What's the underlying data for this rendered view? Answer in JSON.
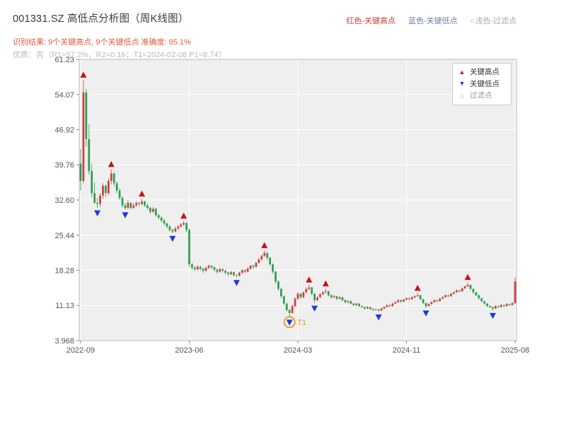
{
  "header": {
    "title": "001331.SZ 高低点分析图（周K线图）",
    "legend_red": "红色-关键高点",
    "legend_blue": "蓝色-关键低点",
    "legend_filtered": "○浅色-过滤点",
    "result_line": "识别结果: 9个关键高点, 9个关键低点  准确度: 95.1%",
    "quality_line": "优质：否（R1=57.2%，R2=0.16；T1=2024-02-08 P1=8.74）",
    "colors": {
      "title": "#3a3a3a",
      "red": "#c2443a",
      "blue": "#6f7fa3",
      "filtered": "#a8a8a8",
      "result": "#e05a3f",
      "quality": "#b9b9b9"
    }
  },
  "plot_legend": {
    "items": [
      {
        "label": "关键高点",
        "marker": "▲"
      },
      {
        "label": "关键低点",
        "marker": "▼"
      },
      {
        "label": "过滤点",
        "marker": "△"
      }
    ]
  },
  "chart_data": {
    "type": "candlestick",
    "title": "001331.SZ 高低点分析图（周K线图）",
    "x_tick_labels": [
      "2022-09",
      "2023-06",
      "2024-03",
      "2024-11",
      "2025-08"
    ],
    "x_tick_weeks": [
      0,
      39,
      78,
      117,
      156
    ],
    "y_tick_labels": [
      "3.968",
      "11.13",
      "18.28",
      "25.44",
      "32.60",
      "39.76",
      "46.92",
      "54.07",
      "61.23"
    ],
    "y_tick_values": [
      3.968,
      11.13,
      18.28,
      25.44,
      32.6,
      39.76,
      46.92,
      54.07,
      61.23
    ],
    "ylim": [
      3.968,
      61.23
    ],
    "key_high_count": 9,
    "key_low_count": 9,
    "accuracy": "95.1%",
    "key_highs": [
      [
        1,
        57.0
      ],
      [
        11,
        38.8
      ],
      [
        22,
        32.8
      ],
      [
        37,
        28.3
      ],
      [
        66,
        22.3
      ],
      [
        82,
        15.3
      ],
      [
        88,
        14.5
      ],
      [
        121,
        13.6
      ],
      [
        139,
        15.8
      ]
    ],
    "key_lows": [
      [
        6,
        31.0
      ],
      [
        16,
        30.6
      ],
      [
        33,
        25.8
      ],
      [
        56,
        16.8
      ],
      [
        75,
        8.74
      ],
      [
        84,
        11.6
      ],
      [
        107,
        9.8
      ],
      [
        124,
        10.6
      ],
      [
        148,
        10.1
      ]
    ],
    "t1_annotation": {
      "week": 75,
      "price": 8.74,
      "label": "T1",
      "date": "2024-02-08"
    },
    "colors": {
      "up": "#cf4040",
      "down": "#2f9e50",
      "high_marker": "#cc1111",
      "low_marker": "#1f3bcc",
      "filtered": "#bbbbbb",
      "plot_bg": "#efefef",
      "grid": "#ffffff",
      "border": "#bbbbbb",
      "tick": "#888888",
      "tick_label": "#555555",
      "annotation": "#e8991c"
    },
    "candles": [
      [
        40.0,
        43.0,
        34.5,
        36.5
      ],
      [
        36.5,
        57.0,
        36.0,
        54.5
      ],
      [
        54.5,
        55.2,
        43.5,
        45.0
      ],
      [
        45.0,
        48.0,
        37.8,
        38.5
      ],
      [
        38.5,
        40.0,
        33.2,
        34.0
      ],
      [
        34.0,
        36.2,
        31.8,
        32.0
      ],
      [
        32.0,
        33.0,
        31.0,
        31.8
      ],
      [
        31.8,
        34.0,
        31.2,
        33.5
      ],
      [
        33.5,
        36.0,
        32.8,
        35.5
      ],
      [
        35.5,
        35.8,
        33.2,
        34.0
      ],
      [
        34.0,
        37.0,
        33.6,
        36.5
      ],
      [
        36.5,
        38.8,
        35.8,
        38.0
      ],
      [
        38.0,
        38.2,
        35.4,
        36.0
      ],
      [
        36.0,
        36.4,
        34.0,
        34.5
      ],
      [
        34.5,
        35.0,
        32.6,
        33.0
      ],
      [
        33.0,
        33.4,
        31.0,
        31.5
      ],
      [
        31.5,
        32.0,
        30.6,
        31.0
      ],
      [
        31.0,
        32.6,
        30.8,
        32.0
      ],
      [
        32.0,
        32.2,
        30.7,
        31.0
      ],
      [
        31.0,
        32.0,
        30.8,
        31.5
      ],
      [
        31.5,
        32.4,
        31.2,
        32.0
      ],
      [
        32.0,
        32.2,
        31.4,
        31.8
      ],
      [
        31.8,
        32.8,
        31.5,
        32.3
      ],
      [
        32.3,
        32.5,
        31.2,
        31.5
      ],
      [
        31.5,
        31.8,
        30.6,
        31.0
      ],
      [
        31.0,
        31.2,
        29.8,
        30.2
      ],
      [
        30.2,
        31.2,
        30.0,
        30.8
      ],
      [
        30.8,
        31.0,
        29.2,
        29.5
      ],
      [
        29.5,
        29.8,
        28.6,
        29.0
      ],
      [
        29.0,
        29.3,
        28.0,
        28.4
      ],
      [
        28.4,
        28.8,
        27.4,
        27.8
      ],
      [
        27.8,
        28.0,
        26.8,
        27.2
      ],
      [
        27.2,
        27.5,
        26.1,
        26.5
      ],
      [
        26.5,
        26.7,
        25.8,
        26.2
      ],
      [
        26.2,
        27.1,
        26.0,
        26.8
      ],
      [
        26.8,
        27.5,
        26.4,
        27.2
      ],
      [
        27.2,
        27.9,
        26.9,
        27.6
      ],
      [
        27.6,
        28.3,
        27.3,
        27.9
      ],
      [
        27.9,
        28.0,
        26.0,
        26.5
      ],
      [
        26.5,
        26.8,
        18.9,
        19.5
      ],
      [
        19.5,
        19.8,
        18.3,
        18.8
      ],
      [
        18.8,
        19.2,
        18.1,
        18.5
      ],
      [
        18.5,
        19.3,
        18.2,
        19.0
      ],
      [
        19.0,
        19.2,
        18.2,
        18.6
      ],
      [
        18.6,
        18.8,
        17.8,
        18.2
      ],
      [
        18.2,
        19.0,
        18.0,
        18.8
      ],
      [
        18.8,
        19.5,
        18.5,
        19.2
      ],
      [
        19.2,
        19.4,
        18.5,
        18.9
      ],
      [
        18.9,
        19.1,
        18.0,
        18.4
      ],
      [
        18.4,
        18.6,
        17.6,
        18.0
      ],
      [
        18.0,
        18.8,
        17.8,
        18.5
      ],
      [
        18.5,
        18.7,
        17.9,
        18.2
      ],
      [
        18.2,
        18.4,
        17.4,
        17.8
      ],
      [
        17.8,
        18.0,
        17.1,
        17.5
      ],
      [
        17.5,
        18.2,
        17.3,
        17.9
      ],
      [
        17.9,
        18.0,
        17.0,
        17.3
      ],
      [
        17.3,
        17.5,
        16.8,
        17.2
      ],
      [
        17.2,
        18.0,
        17.0,
        17.8
      ],
      [
        17.8,
        18.5,
        17.5,
        18.3
      ],
      [
        18.3,
        18.5,
        17.7,
        18.0
      ],
      [
        18.0,
        18.9,
        17.8,
        18.6
      ],
      [
        18.6,
        19.4,
        18.4,
        19.2
      ],
      [
        19.2,
        19.5,
        18.6,
        19.0
      ],
      [
        19.0,
        20.0,
        18.8,
        19.8
      ],
      [
        19.8,
        20.8,
        19.6,
        20.5
      ],
      [
        20.5,
        21.5,
        20.2,
        21.2
      ],
      [
        21.2,
        22.3,
        21.0,
        21.8
      ],
      [
        21.8,
        22.0,
        20.4,
        20.8
      ],
      [
        20.8,
        21.0,
        19.2,
        19.5
      ],
      [
        19.5,
        19.7,
        17.6,
        18.0
      ],
      [
        18.0,
        18.2,
        15.6,
        16.0
      ],
      [
        16.0,
        16.3,
        14.1,
        14.5
      ],
      [
        14.5,
        14.8,
        12.6,
        13.0
      ],
      [
        13.0,
        13.2,
        11.2,
        11.5
      ],
      [
        11.5,
        11.7,
        9.9,
        10.2
      ],
      [
        10.2,
        10.4,
        8.74,
        9.6
      ],
      [
        9.6,
        11.3,
        9.4,
        11.0
      ],
      [
        11.0,
        12.8,
        10.8,
        12.5
      ],
      [
        12.5,
        13.8,
        12.2,
        13.5
      ],
      [
        13.5,
        13.7,
        12.5,
        12.8
      ],
      [
        12.8,
        14.0,
        12.6,
        13.8
      ],
      [
        13.8,
        14.8,
        13.6,
        14.5
      ],
      [
        14.5,
        15.3,
        14.2,
        14.8
      ],
      [
        14.8,
        14.9,
        13.2,
        13.5
      ],
      [
        13.5,
        13.6,
        11.6,
        12.2
      ],
      [
        12.2,
        13.0,
        12.0,
        12.8
      ],
      [
        12.8,
        13.6,
        12.6,
        13.4
      ],
      [
        13.4,
        14.0,
        13.2,
        13.8
      ],
      [
        13.8,
        14.5,
        13.6,
        14.0
      ],
      [
        14.0,
        14.1,
        13.0,
        13.2
      ],
      [
        13.2,
        13.4,
        12.5,
        12.8
      ],
      [
        12.8,
        13.3,
        12.6,
        13.0
      ],
      [
        13.0,
        13.1,
        12.2,
        12.5
      ],
      [
        12.5,
        13.0,
        12.3,
        12.8
      ],
      [
        12.8,
        12.9,
        12.0,
        12.2
      ],
      [
        12.2,
        12.4,
        11.6,
        11.8
      ],
      [
        11.8,
        12.2,
        11.6,
        12.0
      ],
      [
        12.0,
        12.1,
        11.3,
        11.5
      ],
      [
        11.5,
        11.7,
        11.0,
        11.2
      ],
      [
        11.2,
        11.7,
        11.0,
        11.5
      ],
      [
        11.5,
        11.6,
        10.8,
        11.0
      ],
      [
        11.0,
        11.2,
        10.6,
        10.8
      ],
      [
        10.8,
        10.9,
        10.3,
        10.5
      ],
      [
        10.5,
        11.0,
        10.4,
        10.8
      ],
      [
        10.8,
        10.9,
        10.2,
        10.4
      ],
      [
        10.4,
        10.6,
        10.0,
        10.2
      ],
      [
        10.2,
        10.5,
        10.1,
        10.3
      ],
      [
        10.3,
        10.4,
        9.8,
        10.1
      ],
      [
        10.1,
        10.7,
        10.0,
        10.5
      ],
      [
        10.5,
        11.0,
        10.4,
        10.8
      ],
      [
        10.8,
        11.4,
        10.7,
        11.2
      ],
      [
        11.2,
        11.3,
        10.8,
        11.0
      ],
      [
        11.0,
        11.7,
        10.9,
        11.5
      ],
      [
        11.5,
        12.0,
        11.4,
        11.8
      ],
      [
        11.8,
        12.4,
        11.7,
        12.2
      ],
      [
        12.2,
        12.3,
        11.7,
        11.9
      ],
      [
        11.9,
        12.5,
        11.8,
        12.3
      ],
      [
        12.3,
        12.8,
        12.2,
        12.6
      ],
      [
        12.6,
        12.7,
        12.2,
        12.4
      ],
      [
        12.4,
        13.0,
        12.3,
        12.8
      ],
      [
        12.8,
        13.2,
        12.6,
        13.0
      ],
      [
        13.0,
        13.6,
        12.9,
        13.2
      ],
      [
        13.2,
        13.3,
        12.2,
        12.4
      ],
      [
        12.4,
        12.5,
        11.4,
        11.6
      ],
      [
        11.6,
        11.7,
        10.6,
        11.0
      ],
      [
        11.0,
        11.6,
        10.9,
        11.4
      ],
      [
        11.4,
        12.0,
        11.3,
        11.8
      ],
      [
        11.8,
        12.4,
        11.7,
        12.2
      ],
      [
        12.2,
        12.3,
        11.8,
        12.0
      ],
      [
        12.0,
        12.7,
        11.9,
        12.5
      ],
      [
        12.5,
        13.0,
        12.4,
        12.8
      ],
      [
        12.8,
        13.4,
        12.7,
        13.2
      ],
      [
        13.2,
        13.3,
        12.8,
        13.0
      ],
      [
        13.0,
        13.7,
        12.9,
        13.5
      ],
      [
        13.5,
        14.0,
        13.4,
        13.8
      ],
      [
        13.8,
        14.4,
        13.7,
        14.2
      ],
      [
        14.2,
        14.3,
        13.8,
        14.0
      ],
      [
        14.0,
        14.8,
        13.9,
        14.6
      ],
      [
        14.6,
        15.2,
        14.5,
        15.0
      ],
      [
        15.0,
        15.8,
        14.9,
        15.3
      ],
      [
        15.3,
        15.4,
        14.2,
        14.5
      ],
      [
        14.5,
        14.6,
        13.5,
        13.8
      ],
      [
        13.8,
        13.9,
        13.0,
        13.2
      ],
      [
        13.2,
        13.3,
        12.3,
        12.6
      ],
      [
        12.6,
        12.7,
        11.8,
        12.0
      ],
      [
        12.0,
        12.1,
        11.2,
        11.5
      ],
      [
        11.5,
        11.6,
        10.8,
        11.0
      ],
      [
        11.0,
        11.2,
        10.6,
        10.8
      ],
      [
        10.8,
        10.9,
        10.1,
        10.5
      ],
      [
        10.5,
        11.2,
        10.4,
        11.0
      ],
      [
        11.0,
        11.1,
        10.6,
        10.8
      ],
      [
        10.8,
        11.4,
        10.7,
        11.2
      ],
      [
        11.2,
        11.3,
        10.8,
        11.0
      ],
      [
        11.0,
        11.6,
        10.9,
        11.4
      ],
      [
        11.4,
        11.5,
        11.0,
        11.2
      ],
      [
        11.2,
        11.8,
        11.1,
        11.6
      ],
      [
        11.6,
        16.8,
        11.4,
        16.0
      ]
    ]
  }
}
